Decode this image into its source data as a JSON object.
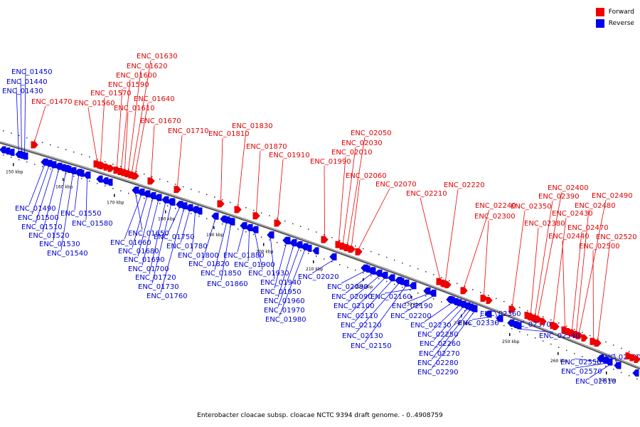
{
  "caption": "Enterobacter cloacae subsp. cloacae NCTC 9394 draft genome. - 0..4908759",
  "legend": [
    {
      "label": "Forward",
      "color": "#ee0000"
    },
    {
      "label": "Reverse",
      "color": "#0000ee"
    }
  ],
  "colors": {
    "forward": "#ee0000",
    "reverse": "#0000ee",
    "backbone": "#888888"
  },
  "ticks": [
    "150 kbp",
    "160 kbp",
    "170 kbp",
    "180 kbp",
    "190 kbp",
    "200 kbp",
    "210 kbp",
    "220 kbp",
    "230 kbp",
    "240 kbp",
    "250 kbp",
    "260 kbp",
    "270 kbp"
  ],
  "forward_labels": [
    "ENC_01470",
    "ENC_01560",
    "ENC_01570",
    "ENC_01590",
    "ENC_01600",
    "ENC_01610",
    "ENC_01620",
    "ENC_01630",
    "ENC_01640",
    "ENC_01670",
    "ENC_01710",
    "ENC_01810",
    "ENC_01830",
    "ENC_01870",
    "ENC_01910",
    "ENC_01990",
    "ENC_02010",
    "ENC_02030",
    "ENC_02050",
    "ENC_02060",
    "ENC_02070",
    "ENC_02210",
    "ENC_02220",
    "ENC_02240",
    "ENC_02300",
    "ENC_02350",
    "ENC_02380",
    "ENC_02390",
    "ENC_02400",
    "ENC_02430",
    "ENC_02440",
    "ENC_02470",
    "ENC_02480",
    "ENC_02490",
    "ENC_02500",
    "ENC_02520"
  ],
  "reverse_labels": [
    "ENC_01430",
    "ENC_01440",
    "ENC_01450",
    "ENC_01490",
    "ENC_01500",
    "ENC_01510",
    "ENC_01520",
    "ENC_01530",
    "ENC_01540",
    "ENC_01550",
    "ENC_01580",
    "ENC_01650",
    "ENC_01660",
    "ENC_01680",
    "ENC_01690",
    "ENC_01700",
    "ENC_01720",
    "ENC_01730",
    "ENC_01750",
    "ENC_01760",
    "ENC_01780",
    "ENC_01800",
    "ENC_01820",
    "ENC_01850",
    "ENC_01860",
    "ENC_01880",
    "ENC_01900",
    "ENC_01930",
    "ENC_01940",
    "ENC_01950",
    "ENC_01960",
    "ENC_01970",
    "ENC_01980",
    "ENC_02020",
    "ENC_02080",
    "ENC_02090",
    "ENC_02100",
    "ENC_02110",
    "ENC_02120",
    "ENC_02130",
    "ENC_02150",
    "ENC_02160",
    "ENC_02190",
    "ENC_02200",
    "ENC_02230",
    "ENC_02250",
    "ENC_02260",
    "ENC_02270",
    "ENC_02280",
    "ENC_02290",
    "ENC_02330",
    "ENC_02360",
    "ENC_02370",
    "ENC_02540",
    "ENC_02550",
    "ENC_02570",
    "ENC_02610",
    "ENC_02620"
  ]
}
